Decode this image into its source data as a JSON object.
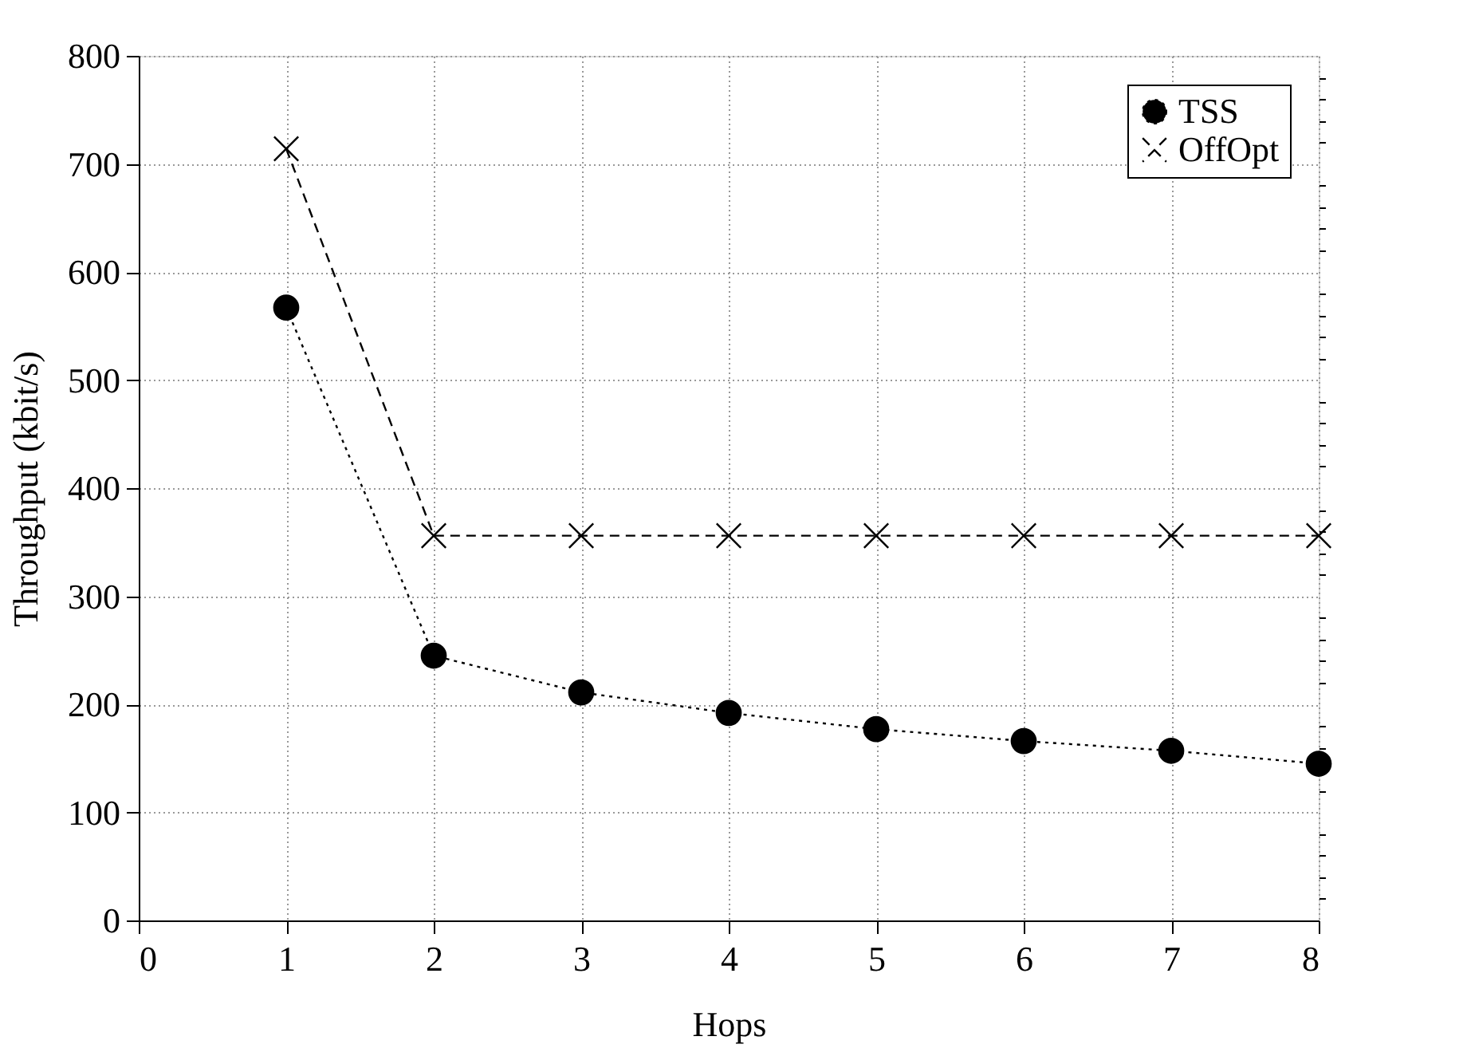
{
  "chart_data": {
    "type": "line",
    "xlabel": "Hops",
    "ylabel": "Throughput (kbit/s)",
    "x": [
      1,
      2,
      3,
      4,
      5,
      6,
      7,
      8
    ],
    "series": [
      {
        "name": "TSS",
        "color": "#000000",
        "marker": "circle",
        "line_style": "dotted",
        "values": [
          567,
          245,
          211,
          192,
          177,
          166,
          157,
          145
        ]
      },
      {
        "name": "OffOpt",
        "color": "#000000",
        "marker": "cross",
        "line_style": "dashed",
        "values": [
          714,
          356,
          356,
          356,
          356,
          356,
          356,
          356
        ]
      }
    ],
    "xlim": [
      0,
      8
    ],
    "xticks": [
      0,
      1,
      2,
      3,
      4,
      5,
      6,
      7,
      8
    ],
    "ylim": [
      0,
      800
    ],
    "yticks": [
      0,
      {
        "value": 20,
        "label": null
      },
      {
        "value": 40,
        "label": null
      },
      {
        "value": 60,
        "label": null
      },
      {
        "value": 80,
        "label": null
      },
      100,
      {
        "value": 120,
        "label": null
      },
      {
        "value": 140,
        "label": null
      },
      {
        "value": 160,
        "label": null
      },
      {
        "value": 180,
        "label": null
      },
      200,
      {
        "value": 220,
        "label": null
      },
      {
        "value": 240,
        "label": null
      },
      {
        "value": 260,
        "label": null
      },
      {
        "value": 280,
        "label": null
      },
      300,
      {
        "value": 320,
        "label": null
      },
      {
        "value": 340,
        "label": null
      },
      {
        "value": 360,
        "label": null
      },
      {
        "value": 380,
        "label": null
      },
      400,
      {
        "value": 420,
        "label": null
      },
      {
        "value": 440,
        "label": null
      },
      {
        "value": 460,
        "label": null
      },
      {
        "value": 480,
        "label": null
      },
      500,
      {
        "value": 520,
        "label": null
      },
      {
        "value": 540,
        "label": null
      },
      {
        "value": 560,
        "label": null
      },
      {
        "value": 580,
        "label": null
      },
      600,
      {
        "value": 620,
        "label": null
      },
      {
        "value": 640,
        "label": null
      },
      {
        "value": 660,
        "label": null
      },
      {
        "value": 680,
        "label": null
      },
      700,
      {
        "value": 720,
        "label": null
      },
      {
        "value": 740,
        "label": null
      },
      {
        "value": 760,
        "label": null
      },
      {
        "value": 780,
        "label": null
      },
      800
    ],
    "grid": true,
    "legend": "top right"
  }
}
